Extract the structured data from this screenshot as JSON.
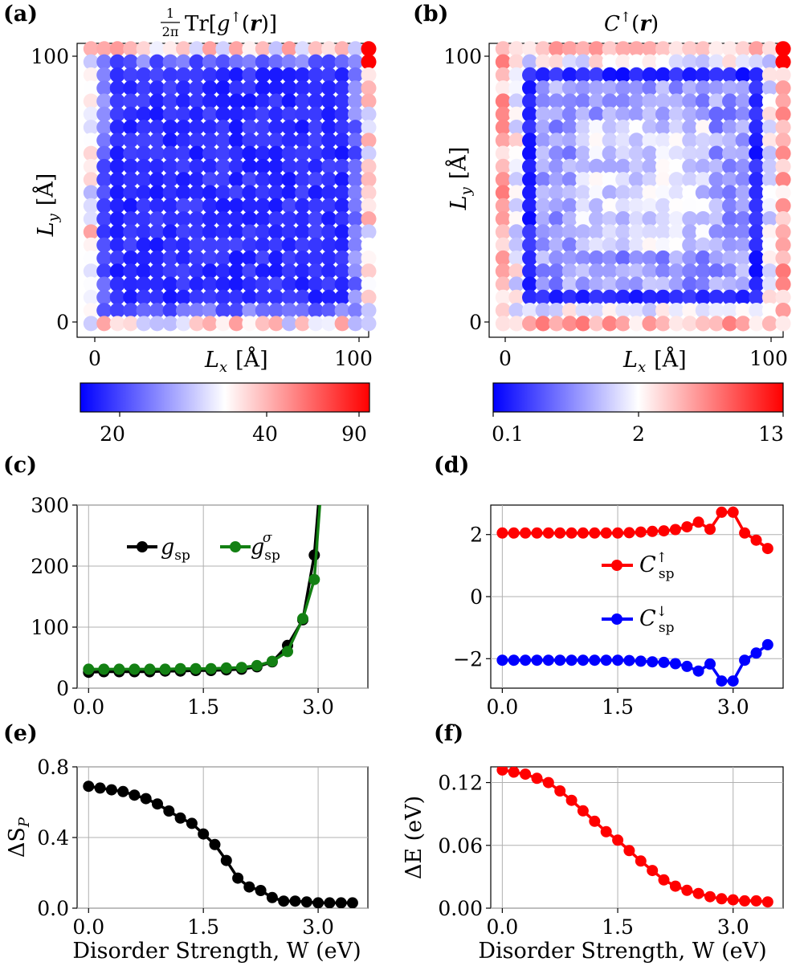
{
  "figure": {
    "panel_labels": [
      "(a)",
      "(b)",
      "(c)",
      "(d)",
      "(e)",
      "(f)"
    ]
  },
  "chart_data": [
    {
      "panel": "(a)",
      "type": "heatmap",
      "title": "(1/2π) Tr[g↑(r)]",
      "title_parts": {
        "frac_num": "1",
        "frac_den": "2π",
        "tr": "Tr[",
        "g": "g",
        "sup": "↑",
        "open": "(",
        "r": "r",
        "close": ")]"
      },
      "xlabel": "L_x [Å]",
      "xlabel_parts": {
        "var": "L",
        "sub": "x",
        "unit": "[Å]"
      },
      "ylabel": "L_y [Å]",
      "ylabel_parts": {
        "var": "L",
        "sub": "y",
        "unit": "[Å]"
      },
      "xticks": [
        "0",
        "100"
      ],
      "yticks": [
        "0",
        "100"
      ],
      "xlim": [
        -5,
        100
      ],
      "ylim": [
        -5,
        102
      ],
      "grid_size": 22,
      "colorbar": {
        "ticks": [
          20,
          40,
          90
        ],
        "tick_labels": [
          "20",
          "40",
          "90"
        ],
        "range": [
          15,
          93
        ],
        "colors": [
          "#0000ff",
          "#ffffff",
          "#ff0000"
        ],
        "center": 35
      }
    },
    {
      "panel": "(b)",
      "type": "heatmap",
      "title": "C↑(r)",
      "title_parts": {
        "c": "C",
        "sup": "↑",
        "open": "(",
        "r": "r",
        "close": ")"
      },
      "xlabel": "L_x [Å]",
      "xlabel_parts": {
        "var": "L",
        "sub": "x",
        "unit": "[Å]"
      },
      "ylabel": "L_y [Å]",
      "ylabel_parts": {
        "var": "L",
        "sub": "y",
        "unit": "[Å]"
      },
      "xticks": [
        "0",
        "100"
      ],
      "yticks": [
        "0",
        "100"
      ],
      "xlim": [
        -5,
        100
      ],
      "ylim": [
        -5,
        102
      ],
      "grid_size": 22,
      "colorbar": {
        "ticks": [
          0.1,
          2,
          13
        ],
        "tick_labels": [
          "0.1",
          "2",
          "13"
        ],
        "range": [
          0.1,
          13
        ],
        "colors": [
          "#0000ff",
          "#ffffff",
          "#ff0000"
        ],
        "center": 2
      }
    },
    {
      "panel": "(c)",
      "type": "line",
      "xticks": [
        "0.0",
        "1.5",
        "3.0"
      ],
      "xtick_values": [
        0,
        1.5,
        3.0
      ],
      "yticks": [
        "0",
        "100",
        "200",
        "300"
      ],
      "ytick_values": [
        0,
        100,
        200,
        300
      ],
      "xlim": [
        -0.15,
        3.65
      ],
      "ylim": [
        0,
        300
      ],
      "grid": true,
      "legend": {
        "placement": "upper-left",
        "orientation": "horizontal"
      },
      "series": [
        {
          "name": "g_sp",
          "name_parts": {
            "base": "g",
            "sub": "sp",
            "sup": ""
          },
          "color": "#000000",
          "x": [
            0.0,
            0.2,
            0.4,
            0.6,
            0.8,
            1.0,
            1.2,
            1.4,
            1.6,
            1.8,
            2.0,
            2.2,
            2.4,
            2.6,
            2.8,
            2.95,
            3.2
          ],
          "y": [
            26,
            27,
            27,
            27,
            27,
            28,
            28,
            29,
            29,
            30,
            31,
            35,
            43,
            70,
            112,
            218,
            600
          ]
        },
        {
          "name": "g_sp^σ",
          "name_parts": {
            "base": "g",
            "sub": "sp",
            "sup": "σ"
          },
          "color": "#138013",
          "x": [
            0.0,
            0.2,
            0.4,
            0.6,
            0.8,
            1.0,
            1.2,
            1.4,
            1.6,
            1.8,
            2.0,
            2.2,
            2.4,
            2.6,
            2.8,
            2.95,
            3.2
          ],
          "y": [
            31,
            31,
            31,
            31,
            31,
            31,
            32,
            32,
            32,
            33,
            34,
            37,
            44,
            60,
            114,
            178,
            600
          ]
        }
      ]
    },
    {
      "panel": "(d)",
      "type": "line",
      "xticks": [
        "0.0",
        "1.5",
        "3.0"
      ],
      "xtick_values": [
        0,
        1.5,
        3.0
      ],
      "yticks": [
        "−2",
        "0",
        "2"
      ],
      "ytick_values": [
        -2,
        0,
        2
      ],
      "xlim": [
        -0.15,
        3.65
      ],
      "ylim": [
        -2.95,
        2.95
      ],
      "grid": true,
      "legend": {
        "placement": "center-right",
        "orientation": "vertical"
      },
      "series": [
        {
          "name": "C_sp^↑",
          "name_parts": {
            "base": "C",
            "sub": "sp",
            "sup": "↑"
          },
          "color": "#ff0000",
          "x": [
            0.0,
            0.15,
            0.3,
            0.45,
            0.6,
            0.75,
            0.9,
            1.05,
            1.2,
            1.35,
            1.5,
            1.65,
            1.8,
            1.95,
            2.1,
            2.25,
            2.4,
            2.55,
            2.7,
            2.85,
            3.0,
            3.15,
            3.3,
            3.45
          ],
          "y": [
            2.05,
            2.05,
            2.05,
            2.05,
            2.05,
            2.05,
            2.05,
            2.05,
            2.05,
            2.05,
            2.05,
            2.06,
            2.08,
            2.1,
            2.12,
            2.16,
            2.25,
            2.4,
            2.17,
            2.72,
            2.72,
            2.05,
            1.82,
            1.55
          ]
        },
        {
          "name": "C_sp^↓",
          "name_parts": {
            "base": "C",
            "sub": "sp",
            "sup": "↓"
          },
          "color": "#0000ff",
          "x": [
            0.0,
            0.15,
            0.3,
            0.45,
            0.6,
            0.75,
            0.9,
            1.05,
            1.2,
            1.35,
            1.5,
            1.65,
            1.8,
            1.95,
            2.1,
            2.25,
            2.4,
            2.55,
            2.7,
            2.85,
            3.0,
            3.15,
            3.3,
            3.45
          ],
          "y": [
            -2.05,
            -2.05,
            -2.05,
            -2.05,
            -2.05,
            -2.05,
            -2.05,
            -2.05,
            -2.05,
            -2.05,
            -2.05,
            -2.06,
            -2.08,
            -2.1,
            -2.12,
            -2.16,
            -2.25,
            -2.4,
            -2.17,
            -2.72,
            -2.72,
            -2.05,
            -1.82,
            -1.55
          ]
        }
      ]
    },
    {
      "panel": "(e)",
      "type": "line",
      "xlabel": "Disorder Strength, W (eV)",
      "ylabel": "ΔS_P",
      "ylabel_parts": {
        "base": "ΔS",
        "sub": "P"
      },
      "xticks": [
        "0.0",
        "1.5",
        "3.0"
      ],
      "xtick_values": [
        0,
        1.5,
        3.0
      ],
      "yticks": [
        "0.0",
        "0.4",
        "0.8"
      ],
      "ytick_values": [
        0,
        0.4,
        0.8
      ],
      "xlim": [
        -0.15,
        3.65
      ],
      "ylim": [
        0,
        0.8
      ],
      "grid": true,
      "series": [
        {
          "color": "#000000",
          "x": [
            0.0,
            0.15,
            0.3,
            0.45,
            0.6,
            0.75,
            0.9,
            1.05,
            1.2,
            1.35,
            1.5,
            1.65,
            1.8,
            1.95,
            2.1,
            2.25,
            2.4,
            2.55,
            2.7,
            2.85,
            3.0,
            3.15,
            3.3,
            3.45
          ],
          "y": [
            0.69,
            0.68,
            0.67,
            0.66,
            0.64,
            0.62,
            0.59,
            0.55,
            0.51,
            0.48,
            0.42,
            0.36,
            0.27,
            0.17,
            0.12,
            0.1,
            0.06,
            0.04,
            0.04,
            0.035,
            0.03,
            0.03,
            0.03,
            0.03
          ]
        }
      ]
    },
    {
      "panel": "(f)",
      "type": "line",
      "xlabel": "Disorder Strength, W (eV)",
      "ylabel": "ΔE (eV)",
      "xticks": [
        "0.0",
        "1.5",
        "3.0"
      ],
      "xtick_values": [
        0,
        1.5,
        3.0
      ],
      "yticks": [
        "0.00",
        "0.06",
        "0.12"
      ],
      "ytick_values": [
        0,
        0.06,
        0.12
      ],
      "xlim": [
        -0.15,
        3.65
      ],
      "ylim": [
        0,
        0.135
      ],
      "grid": true,
      "series": [
        {
          "color": "#ff0000",
          "x": [
            0.0,
            0.15,
            0.3,
            0.45,
            0.6,
            0.75,
            0.9,
            1.05,
            1.2,
            1.35,
            1.5,
            1.65,
            1.8,
            1.95,
            2.1,
            2.25,
            2.4,
            2.55,
            2.7,
            2.85,
            3.0,
            3.15,
            3.3,
            3.45
          ],
          "y": [
            0.132,
            0.13,
            0.128,
            0.124,
            0.12,
            0.112,
            0.103,
            0.093,
            0.083,
            0.073,
            0.065,
            0.055,
            0.045,
            0.036,
            0.027,
            0.021,
            0.017,
            0.014,
            0.011,
            0.009,
            0.008,
            0.007,
            0.007,
            0.006
          ]
        }
      ]
    }
  ]
}
